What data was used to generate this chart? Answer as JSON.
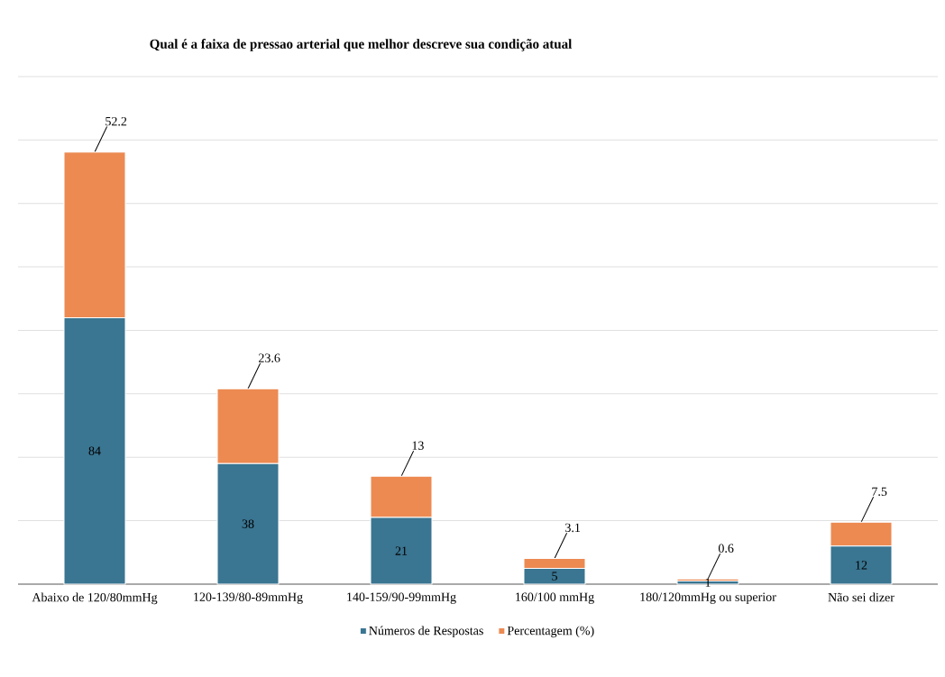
{
  "chart_data": {
    "type": "bar",
    "title": "Qual é a faixa de pressao arterial que melhor descreve sua condição atual",
    "categories": [
      "Abaixo de 120/80mmHg",
      "120-139/80-89mmHg",
      "140-159/90-99mmHg",
      "160/100 mmHg",
      "180/120mmHg ou superior",
      "Não sei dizer"
    ],
    "stacked": true,
    "data_labels": true,
    "grid": "y",
    "legend": "bottom",
    "ylim": [
      0,
      160
    ],
    "yticks": [
      {
        "value": 0,
        "label": null
      },
      {
        "value": 20,
        "label": null
      },
      {
        "value": 40,
        "label": null
      },
      {
        "value": 60,
        "label": null
      },
      {
        "value": 80,
        "label": null
      },
      {
        "value": 100,
        "label": null
      },
      {
        "value": 120,
        "label": null
      },
      {
        "value": 140,
        "label": null
      },
      {
        "value": 160,
        "label": null
      }
    ],
    "tick_labels": "x",
    "series": [
      {
        "name": "Números de Respostas",
        "color": "#3a7591",
        "values": [
          84,
          38,
          21,
          5,
          1,
          12
        ]
      },
      {
        "name": "Percentagem (%)",
        "color": "#ec8a52",
        "values": [
          52.2,
          23.6,
          13,
          3.1,
          0.6,
          7.5
        ]
      }
    ]
  }
}
